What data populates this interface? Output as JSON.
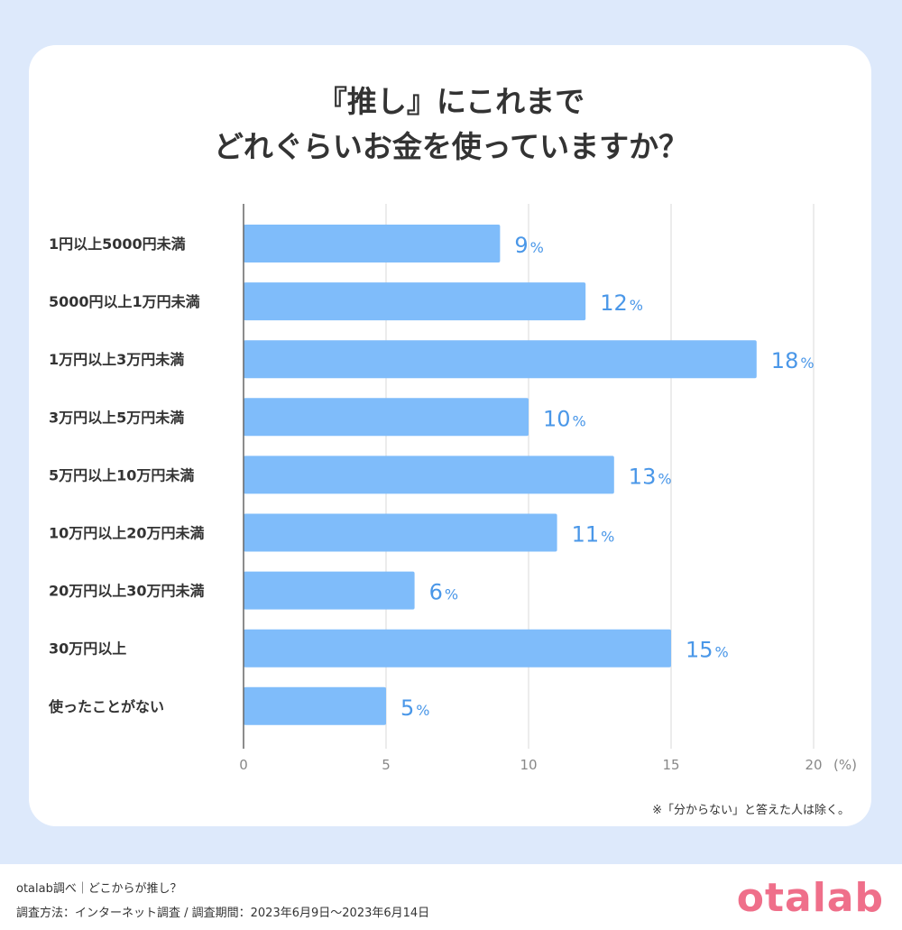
{
  "title": {
    "line1": "『推し』にこれまで",
    "line2": "どれぐらいお金を使っていますか？"
  },
  "note": "※「分からない」と答えた人は除く。",
  "footer": {
    "line1": "otalab調べ｜どこからが推し？",
    "line2": "調査方法：インターネット調査 / 調査期間：2023年6月9日〜2023年6月14日",
    "logo": "otalab"
  },
  "colors": {
    "bar": "#7fbcfa",
    "value_label": "#4a97e8",
    "logo": "#ef6f8a",
    "background": "#dde9fb"
  },
  "chart_data": {
    "type": "bar",
    "orientation": "horizontal",
    "categories": [
      "1円以上5000円未満",
      "5000円以上1万円未満",
      "1万円以上3万円未満",
      "3万円以上5万円未満",
      "5万円以上10万円未満",
      "10万円以上20万円未満",
      "20万円以上30万円未満",
      "30万円以上",
      "使ったことがない"
    ],
    "values": [
      9,
      12,
      18,
      10,
      13,
      11,
      6,
      15,
      5
    ],
    "value_suffix": "%",
    "xlim": [
      0,
      20
    ],
    "xticks": [
      "0",
      "5",
      "10",
      "15",
      "20"
    ],
    "xunit": "(%)",
    "grid": true
  }
}
